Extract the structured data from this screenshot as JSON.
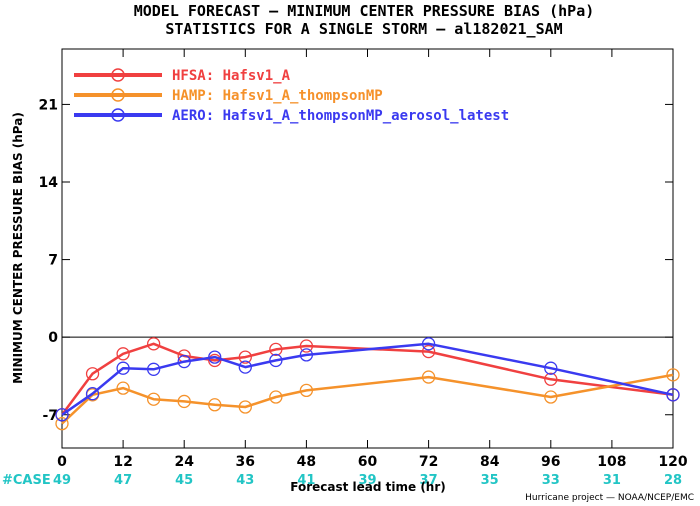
{
  "title_line1": "MODEL FORECAST — MINIMUM CENTER PRESSURE BIAS (hPa)",
  "title_line2": "STATISTICS FOR A SINGLE STORM — al182021_SAM",
  "credit": "Hurricane project — NOAA/NCEP/EMC",
  "case_label": "#CASE",
  "case_color": "#22C5C5",
  "chart_data": {
    "type": "line",
    "title": "MODEL FORECAST — MINIMUM CENTER PRESSURE BIAS (hPa)",
    "subtitle": "STATISTICS FOR A SINGLE STORM — al182021_SAM",
    "xlabel": "Forecast lead time (hr)",
    "ylabel": "MINIMUM CENTER PRESSURE BIAS (hPa)",
    "xlim": [
      0,
      120
    ],
    "ylim": [
      -10,
      26
    ],
    "xticks": [
      0,
      12,
      24,
      36,
      48,
      60,
      72,
      84,
      96,
      108,
      120
    ],
    "yticks": [
      -7,
      0,
      7,
      14,
      21
    ],
    "zero_line": 0,
    "legend_position": "top-left",
    "grid": false,
    "cases": {
      "x": [
        0,
        12,
        24,
        36,
        48,
        60,
        72,
        84,
        96,
        108,
        120
      ],
      "values": [
        49,
        47,
        45,
        43,
        41,
        39,
        37,
        35,
        33,
        31,
        28
      ]
    },
    "series": [
      {
        "label_prefix": "HFSA:",
        "name": "Hafsv1_A",
        "color": "#F04040",
        "x": [
          0,
          6,
          12,
          18,
          24,
          30,
          36,
          42,
          48,
          72,
          96,
          120
        ],
        "y": [
          -7.0,
          -3.3,
          -1.5,
          -0.6,
          -1.7,
          -2.1,
          -1.8,
          -1.1,
          -0.8,
          -1.3,
          -3.8,
          -5.2
        ]
      },
      {
        "label_prefix": "HAMP:",
        "name": "Hafsv1_A_thompsonMP",
        "color": "#F5922B",
        "x": [
          0,
          6,
          12,
          18,
          24,
          30,
          36,
          42,
          48,
          72,
          96,
          120
        ],
        "y": [
          -7.8,
          -5.2,
          -4.6,
          -5.6,
          -5.8,
          -6.1,
          -6.3,
          -5.4,
          -4.8,
          -3.6,
          -5.4,
          -3.4
        ]
      },
      {
        "label_prefix": "AERO:",
        "name": "Hafsv1_A_thompsonMP_aerosol_latest",
        "color": "#3A3AF0",
        "x": [
          0,
          6,
          12,
          18,
          24,
          30,
          36,
          42,
          48,
          72,
          96,
          120
        ],
        "y": [
          -7.0,
          -5.1,
          -2.8,
          -2.9,
          -2.2,
          -1.8,
          -2.7,
          -2.1,
          -1.6,
          -0.6,
          -2.8,
          -5.2
        ]
      }
    ]
  }
}
